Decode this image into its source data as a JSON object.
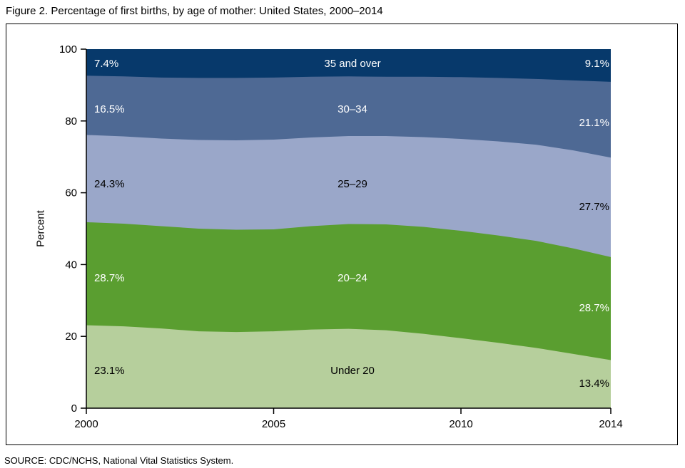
{
  "title": "Figure 2. Percentage of first births, by age of mother: United States, 2000–2014",
  "source": "SOURCE: CDC/NCHS, National Vital Statistics System.",
  "text_colors": {
    "on_dark": "#ffffff",
    "on_light": "#000000"
  },
  "chart_data": {
    "type": "area",
    "stacked": true,
    "title": "Percentage of first births, by age of mother: United States, 2000–2014",
    "xlabel": "",
    "ylabel": "Percent",
    "ylim": [
      0,
      100
    ],
    "yticks": [
      0,
      20,
      40,
      60,
      80,
      100
    ],
    "xticks": [
      2000,
      2005,
      2010,
      2014
    ],
    "grid": false,
    "legend_position": "labels-inside-areas",
    "x": [
      2000,
      2001,
      2002,
      2003,
      2004,
      2005,
      2006,
      2007,
      2008,
      2009,
      2010,
      2011,
      2012,
      2013,
      2014
    ],
    "series": [
      {
        "name": "Under 20",
        "color": "#b6cf9c",
        "label_text": "on_light",
        "start_label": "23.1%",
        "end_label": "13.4%",
        "values": [
          23.1,
          22.8,
          22.2,
          21.4,
          21.2,
          21.4,
          21.9,
          22.1,
          21.7,
          20.7,
          19.5,
          18.2,
          16.8,
          15.1,
          13.4
        ]
      },
      {
        "name": "20–24",
        "color": "#5a9e30",
        "label_text": "on_dark",
        "start_label": "28.7%",
        "end_label": "28.7%",
        "values": [
          28.7,
          28.6,
          28.5,
          28.6,
          28.5,
          28.4,
          28.8,
          29.2,
          29.5,
          29.8,
          29.9,
          29.9,
          29.8,
          29.4,
          28.7
        ]
      },
      {
        "name": "25–29",
        "color": "#9aa7c9",
        "label_text": "on_light",
        "start_label": "24.3%",
        "end_label": "27.7%",
        "values": [
          24.3,
          24.3,
          24.4,
          24.7,
          24.9,
          25.0,
          24.7,
          24.5,
          24.6,
          25.0,
          25.6,
          26.2,
          26.8,
          27.3,
          27.7
        ]
      },
      {
        "name": "30–34",
        "color": "#4e6994",
        "label_text": "on_dark",
        "start_label": "16.5%",
        "end_label": "21.1%",
        "values": [
          16.5,
          16.7,
          17.0,
          17.3,
          17.4,
          17.3,
          16.9,
          16.6,
          16.5,
          16.8,
          17.2,
          17.7,
          18.3,
          19.5,
          21.1
        ]
      },
      {
        "name": "35 and over",
        "color": "#07396b",
        "label_text": "on_dark",
        "start_label": "7.4%",
        "end_label": "9.1%",
        "values": [
          7.4,
          7.6,
          7.9,
          8.0,
          8.0,
          7.9,
          7.7,
          7.6,
          7.7,
          7.7,
          7.8,
          8.0,
          8.3,
          8.7,
          9.1
        ]
      }
    ]
  }
}
